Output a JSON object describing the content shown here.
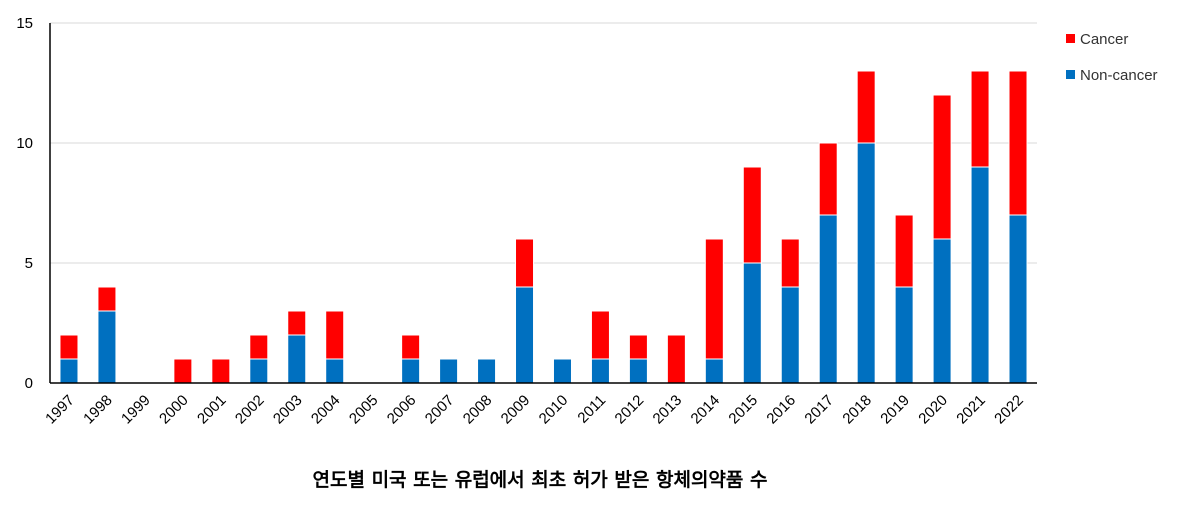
{
  "chart_data": {
    "type": "bar",
    "stacked": true,
    "title": "연도별 미국 또는 유럽에서 최초 허가 받은 항체의약품 수",
    "xlabel": "",
    "ylabel": "",
    "ylim": [
      0,
      15
    ],
    "yticks": [
      0,
      5,
      10,
      15
    ],
    "grid": true,
    "legend_position": "top-right",
    "categories": [
      "1997",
      "1998",
      "1999",
      "2000",
      "2001",
      "2002",
      "2003",
      "2004",
      "2005",
      "2006",
      "2007",
      "2008",
      "2009",
      "2010",
      "2011",
      "2012",
      "2013",
      "2014",
      "2015",
      "2016",
      "2017",
      "2018",
      "2019",
      "2020",
      "2021",
      "2022"
    ],
    "series": [
      {
        "name": "Non-cancer",
        "color": "#0070C0",
        "values": [
          1,
          3,
          0,
          0,
          0,
          1,
          2,
          1,
          0,
          1,
          1,
          1,
          4,
          1,
          1,
          1,
          0,
          1,
          5,
          4,
          7,
          10,
          4,
          6,
          9,
          7
        ]
      },
      {
        "name": "Cancer",
        "color": "#FF0000",
        "values": [
          1,
          1,
          0,
          1,
          1,
          1,
          1,
          2,
          0,
          1,
          0,
          0,
          2,
          0,
          2,
          1,
          2,
          5,
          4,
          2,
          3,
          3,
          3,
          6,
          4,
          6
        ]
      }
    ],
    "legend_order": [
      "Cancer",
      "Non-cancer"
    ]
  }
}
